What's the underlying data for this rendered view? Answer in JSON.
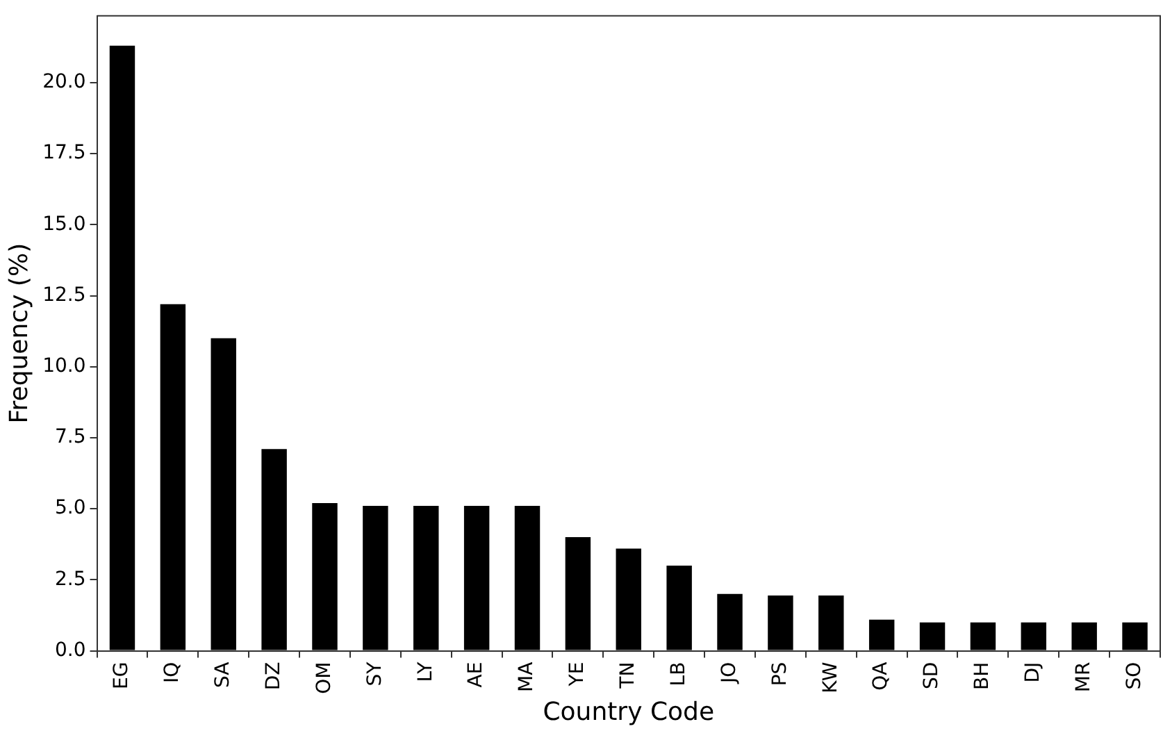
{
  "chart_data": {
    "type": "bar",
    "xlabel": "Country Code",
    "ylabel": "Frequency (%)",
    "categories": [
      "EG",
      "IQ",
      "SA",
      "DZ",
      "OM",
      "SY",
      "LY",
      "AE",
      "MA",
      "YE",
      "TN",
      "LB",
      "JO",
      "PS",
      "KW",
      "QA",
      "SD",
      "BH",
      "DJ",
      "MR",
      "SO"
    ],
    "values": [
      21.3,
      12.2,
      11.0,
      7.1,
      5.2,
      5.1,
      5.1,
      5.1,
      5.1,
      4.0,
      3.6,
      3.0,
      2.0,
      1.95,
      1.95,
      1.1,
      1.0,
      1.0,
      1.0,
      1.0,
      1.0
    ],
    "color": "#000000",
    "ylim": [
      0,
      22.35
    ],
    "yticks": [
      {
        "value": 0,
        "label": "0.0"
      },
      {
        "value": 2.5,
        "label": "2.5"
      },
      {
        "value": 5,
        "label": "5.0"
      },
      {
        "value": 7.5,
        "label": "7.5"
      },
      {
        "value": 10,
        "label": "10.0"
      },
      {
        "value": 12.5,
        "label": "12.5"
      },
      {
        "value": 15,
        "label": "15.0"
      },
      {
        "value": 17.5,
        "label": "17.5"
      },
      {
        "value": 20,
        "label": "20.0"
      }
    ],
    "grid": false,
    "legend": false
  }
}
